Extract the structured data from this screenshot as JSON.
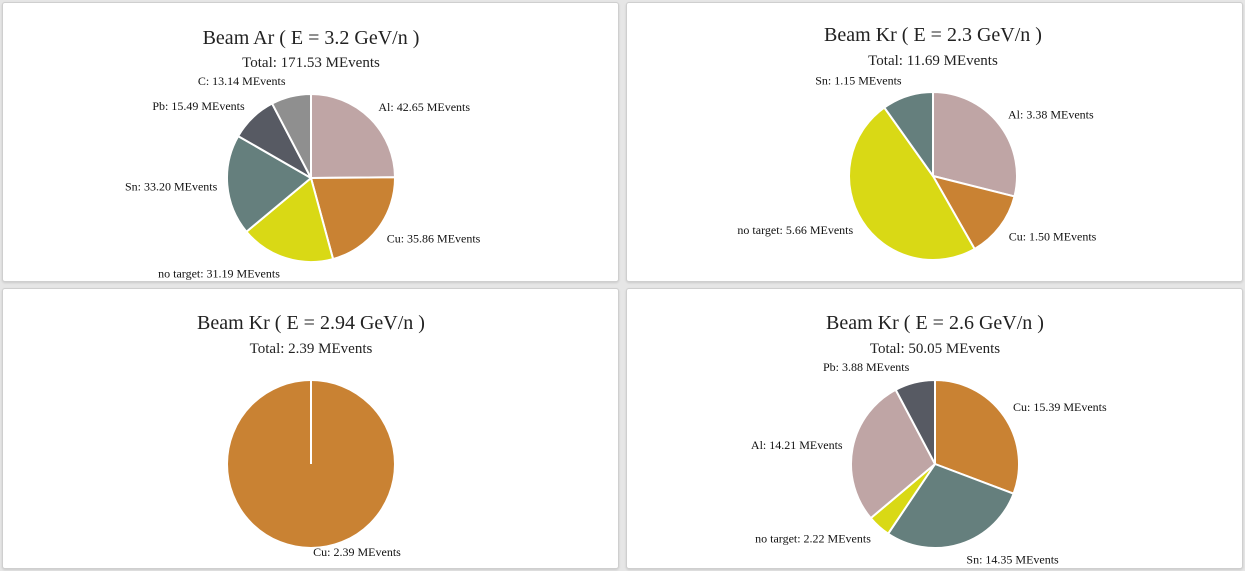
{
  "chart_data": [
    {
      "type": "pie",
      "title": "Beam Ar ( E = 3.2 GeV/n )",
      "subtitle": "Total: 171.53 MEvents",
      "unit": "MEvents",
      "slices": [
        {
          "label": "Al",
          "value": 42.65,
          "color": "#bfa5a5"
        },
        {
          "label": "Cu",
          "value": 35.86,
          "color": "#c98233"
        },
        {
          "label": "no target",
          "value": 31.19,
          "color": "#d9d915"
        },
        {
          "label": "Sn",
          "value": 33.2,
          "color": "#657f7d"
        },
        {
          "label": "Pb",
          "value": 15.49,
          "color": "#575a63"
        },
        {
          "label": "C",
          "value": 13.14,
          "color": "#8f8f8f"
        }
      ]
    },
    {
      "type": "pie",
      "title": "Beam Kr ( E = 2.3 GeV/n )",
      "subtitle": "Total: 11.69 MEvents",
      "unit": "MEvents",
      "slices": [
        {
          "label": "Al",
          "value": 3.38,
          "color": "#bfa5a5"
        },
        {
          "label": "Cu",
          "value": 1.5,
          "color": "#c98233"
        },
        {
          "label": "no target",
          "value": 5.66,
          "color": "#d9d915"
        },
        {
          "label": "Sn",
          "value": 1.15,
          "color": "#657f7d"
        }
      ]
    },
    {
      "type": "pie",
      "title": "Beam Kr ( E = 2.94 GeV/n )",
      "subtitle": "Total: 2.39 MEvents",
      "unit": "MEvents",
      "slices": [
        {
          "label": "Cu",
          "value": 2.39,
          "color": "#c98233"
        }
      ]
    },
    {
      "type": "pie",
      "title": "Beam Kr ( E = 2.6 GeV/n )",
      "subtitle": "Total: 50.05 MEvents",
      "unit": "MEvents",
      "slices": [
        {
          "label": "Cu",
          "value": 15.39,
          "color": "#c98233"
        },
        {
          "label": "Sn",
          "value": 14.35,
          "color": "#657f7d"
        },
        {
          "label": "no target",
          "value": 2.22,
          "color": "#d9d915"
        },
        {
          "label": "Al",
          "value": 14.21,
          "color": "#bfa5a5"
        },
        {
          "label": "Pb",
          "value": 3.88,
          "color": "#575a63"
        }
      ]
    }
  ]
}
